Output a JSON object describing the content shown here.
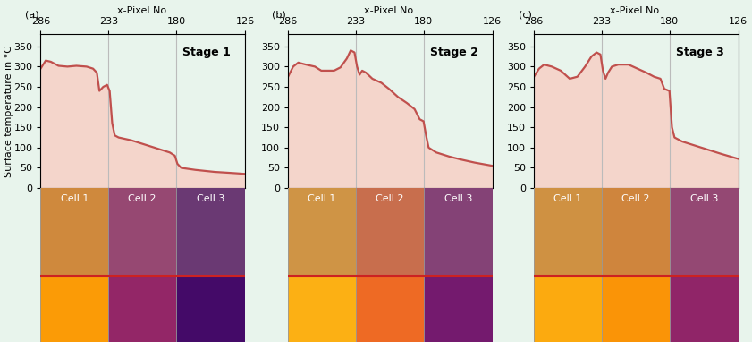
{
  "chart_data": [
    {
      "type": "area",
      "title": "Stage 1",
      "annotation": "(a)",
      "x_label": "x-Pixel No.",
      "y_label": "Surface temperature in °C",
      "cells": [
        "Cell 1",
        "Cell 2",
        "Cell 3"
      ],
      "x": [
        286,
        282,
        278,
        272,
        265,
        258,
        250,
        245,
        242,
        240,
        237,
        234,
        232,
        230,
        228,
        225,
        215,
        205,
        195,
        185,
        181,
        179,
        176,
        165,
        150,
        135,
        126
      ],
      "values": [
        295,
        315,
        312,
        302,
        300,
        302,
        300,
        295,
        285,
        240,
        250,
        255,
        240,
        160,
        130,
        125,
        118,
        108,
        98,
        88,
        80,
        60,
        50,
        45,
        40,
        37,
        35
      ],
      "color": "#c0504d",
      "xlim": [
        286,
        126
      ],
      "xticks": [
        286,
        233,
        180,
        126
      ],
      "ylim": [
        0,
        380
      ],
      "yticks": [
        0,
        50,
        100,
        150,
        200,
        250,
        300,
        350
      ],
      "grid": true
    },
    {
      "type": "area",
      "title": "Stage 2",
      "annotation": "(b)",
      "x_label": "x-Pixel No.",
      "cells": [
        "Cell 1",
        "Cell 2",
        "Cell 3"
      ],
      "x": [
        286,
        282,
        278,
        272,
        265,
        260,
        250,
        245,
        240,
        237,
        234,
        232,
        230,
        228,
        225,
        220,
        213,
        207,
        200,
        193,
        187,
        183,
        180,
        178,
        176,
        170,
        160,
        150,
        140,
        126
      ],
      "values": [
        275,
        300,
        310,
        305,
        300,
        290,
        290,
        298,
        320,
        340,
        335,
        300,
        280,
        290,
        285,
        270,
        260,
        245,
        225,
        210,
        195,
        170,
        165,
        130,
        100,
        88,
        78,
        70,
        63,
        55
      ],
      "color": "#c0504d",
      "xlim": [
        286,
        126
      ],
      "xticks": [
        286,
        233,
        180,
        126
      ],
      "ylim": [
        0,
        380
      ],
      "yticks": [
        0,
        50,
        100,
        150,
        200,
        250,
        300,
        350
      ],
      "grid": true
    },
    {
      "type": "area",
      "title": "Stage 3",
      "annotation": "(c)",
      "x_label": "x-Pixel No.",
      "cells": [
        "Cell 1",
        "Cell 2",
        "Cell 3"
      ],
      "x": [
        286,
        282,
        278,
        272,
        265,
        258,
        252,
        246,
        241,
        237,
        234,
        232,
        230,
        228,
        225,
        220,
        212,
        205,
        198,
        192,
        187,
        184,
        180,
        178,
        176,
        170,
        160,
        150,
        140,
        126
      ],
      "values": [
        275,
        295,
        305,
        300,
        290,
        270,
        275,
        300,
        325,
        335,
        330,
        290,
        270,
        285,
        300,
        305,
        305,
        295,
        285,
        275,
        270,
        245,
        240,
        150,
        125,
        115,
        105,
        95,
        85,
        72
      ],
      "color": "#c0504d",
      "xlim": [
        286,
        126
      ],
      "xticks": [
        286,
        233,
        180,
        126
      ],
      "ylim": [
        0,
        380
      ],
      "yticks": [
        0,
        50,
        100,
        150,
        200,
        250,
        300,
        350
      ],
      "grid": true
    }
  ]
}
